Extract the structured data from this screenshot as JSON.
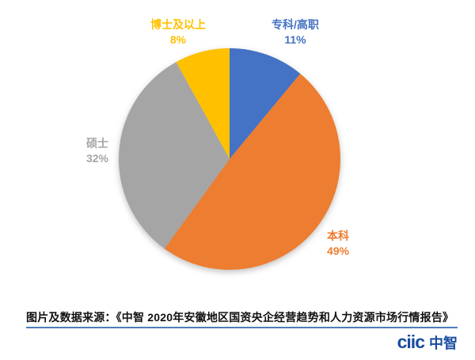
{
  "chart_data": {
    "type": "pie",
    "title": "",
    "start_angle_deg": 0,
    "direction": "clockwise",
    "labels_show": "name_and_percent",
    "background": "#ffffff",
    "slices": [
      {
        "label": "专科/高职",
        "value": 11,
        "pct_label": "11%",
        "color": "#4472C4"
      },
      {
        "label": "本科",
        "value": 49,
        "pct_label": "49%",
        "color": "#ED7D31"
      },
      {
        "label": "硕士",
        "value": 32,
        "pct_label": "32%",
        "color": "#A5A5A5"
      },
      {
        "label": "博士及以上",
        "value": 8,
        "pct_label": "8%",
        "color": "#FFC000"
      }
    ]
  },
  "footer": {
    "source_text": "图片及数据来源：《中智 2020年安徽地区国资央企经营趋势和人力资源市场行情报告》",
    "rule_color": "#4A7EBB"
  },
  "logo": {
    "latin": "ciic",
    "cjk": "中智",
    "color": "#1A4CA0"
  }
}
